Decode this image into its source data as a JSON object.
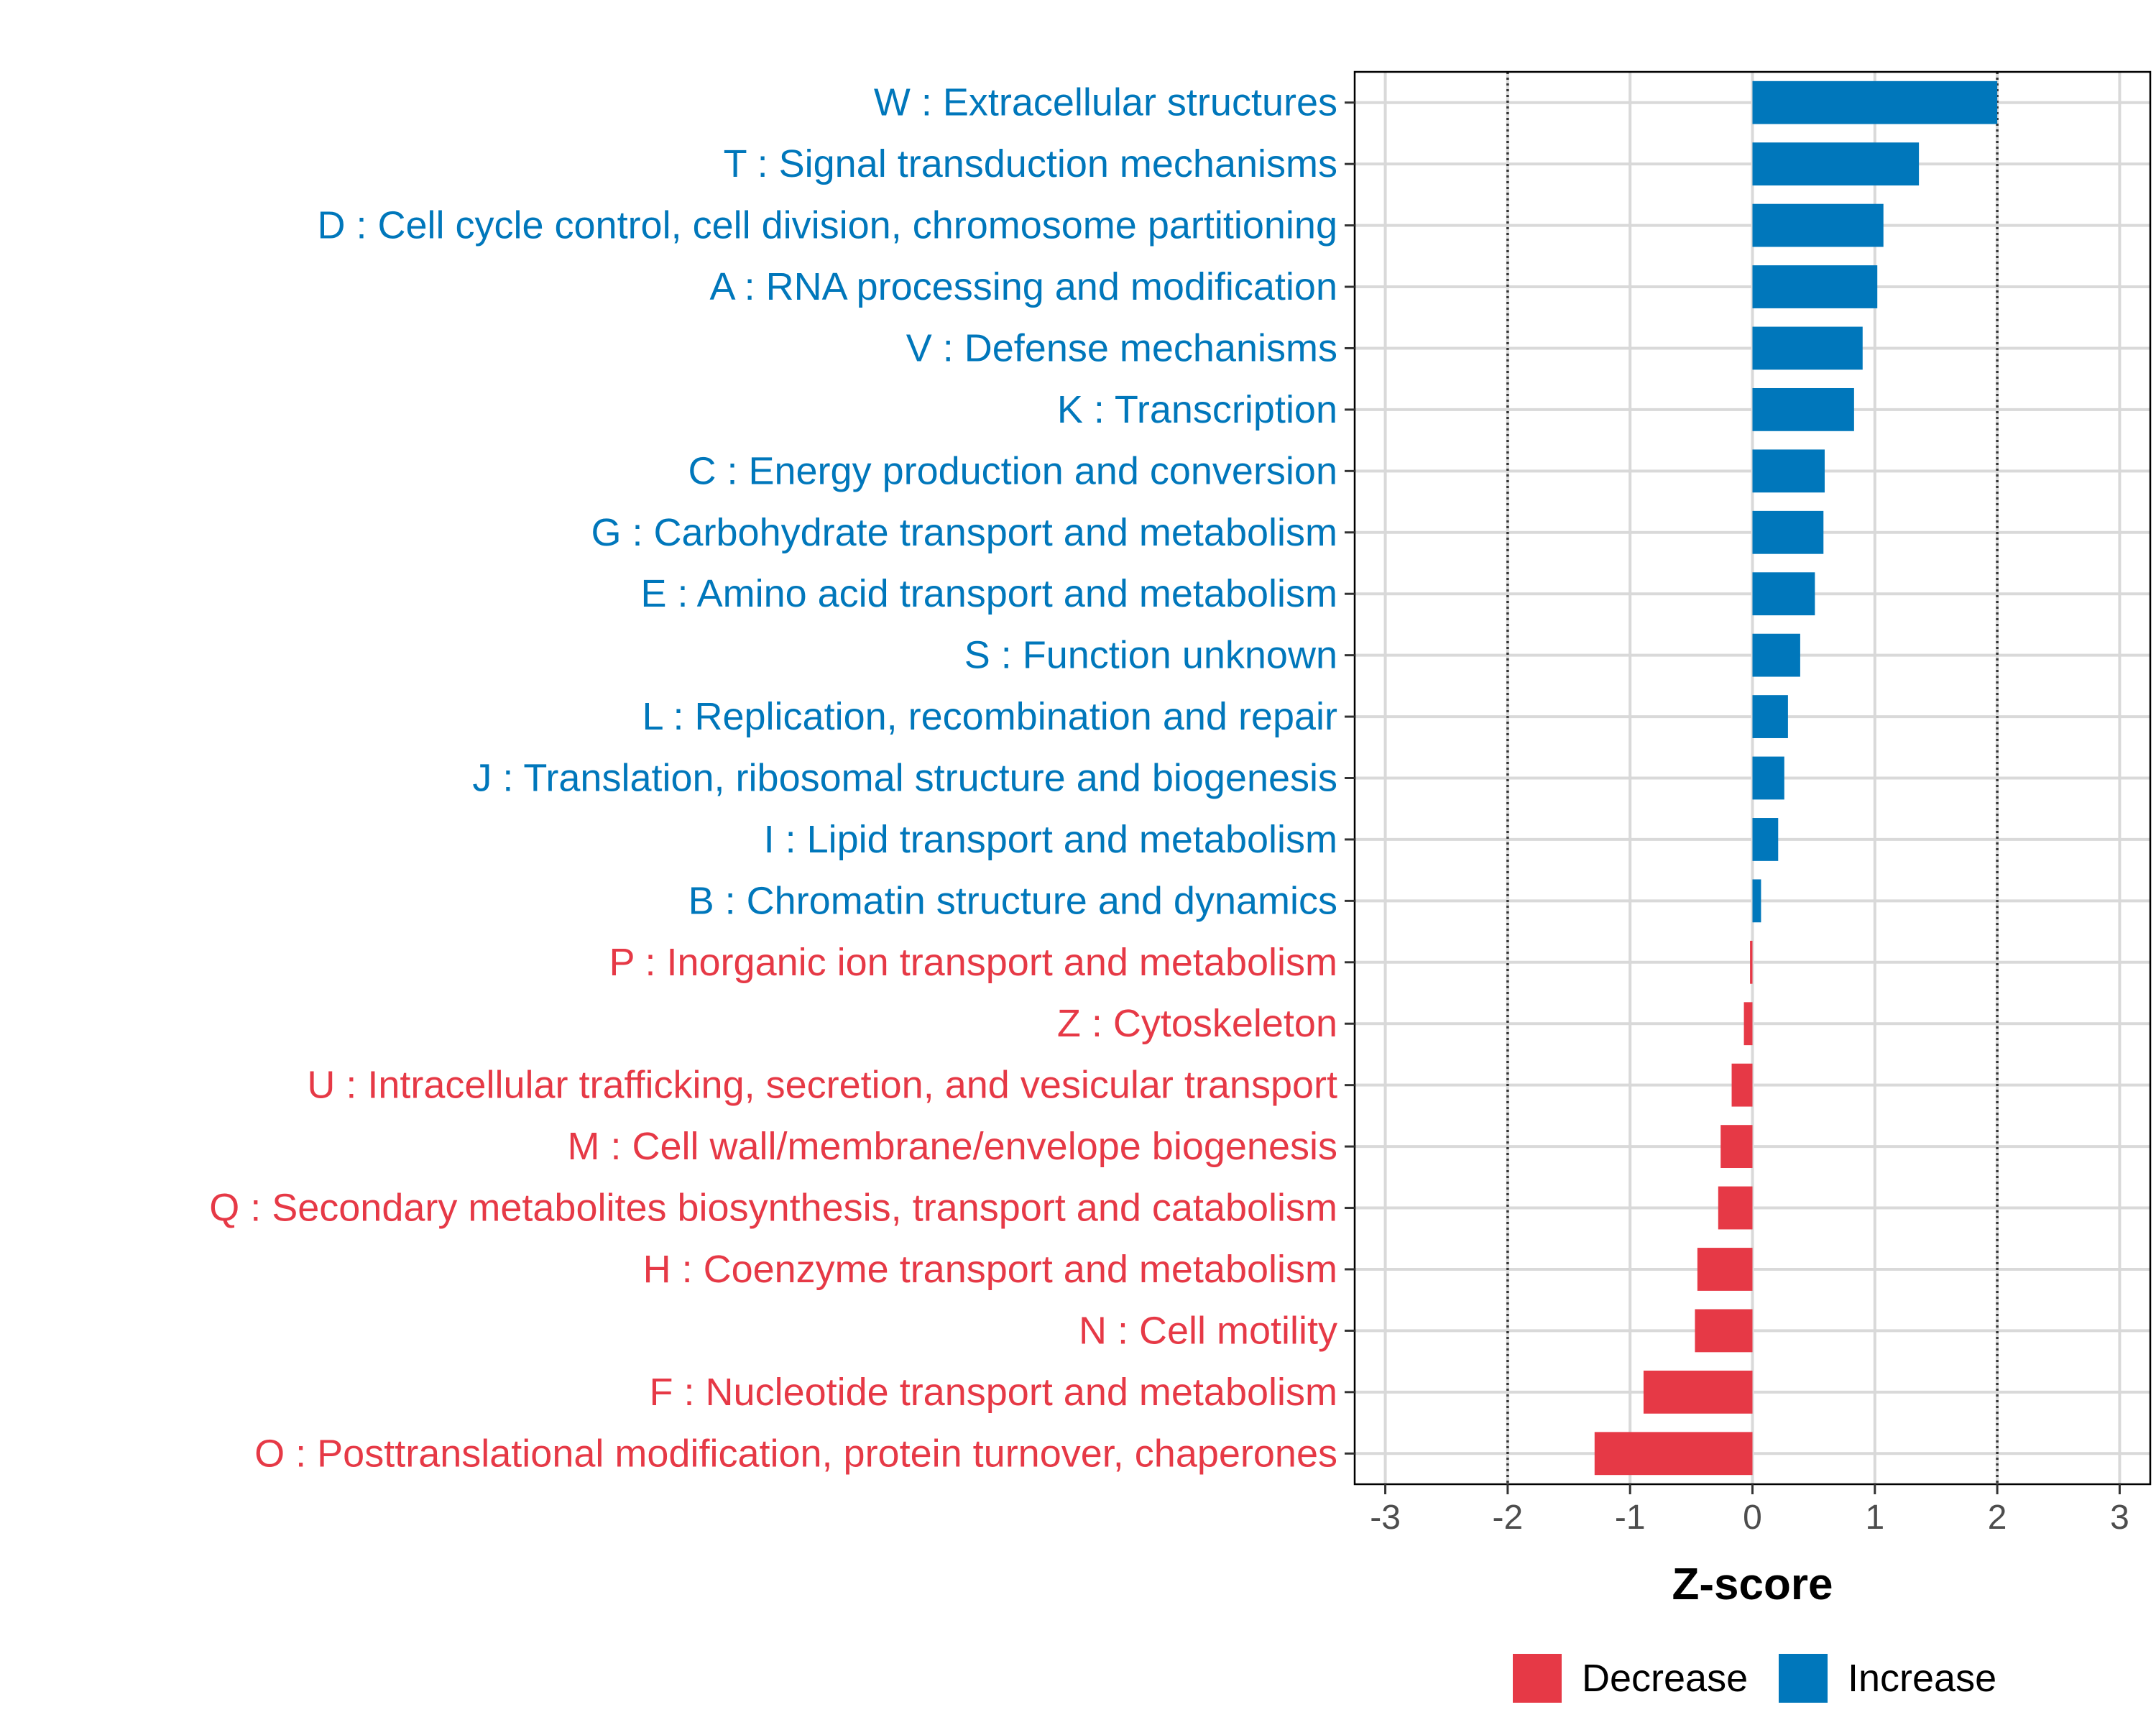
{
  "colors": {
    "increase": "#0077BB",
    "decrease": "#E63946",
    "grid": "#D9D9D9",
    "reference_line": "#333333"
  },
  "chart_data": {
    "type": "bar",
    "orientation": "horizontal",
    "xlabel": "Z-score",
    "ylabel": "",
    "xlim": [
      -3.25,
      3.25
    ],
    "xticks": [
      -3,
      -2,
      -1,
      0,
      1,
      2,
      3
    ],
    "xtick_labels": [
      "-3",
      "-2",
      "-1",
      "0",
      "1",
      "2",
      "3"
    ],
    "reference_lines": [
      -2,
      2
    ],
    "grid": true,
    "legend": {
      "position": "bottom",
      "entries": [
        {
          "name": "Decrease",
          "color": "#E63946"
        },
        {
          "name": "Increase",
          "color": "#0077BB"
        }
      ]
    },
    "categories": [
      "W : Extracellular structures",
      "T : Signal transduction mechanisms",
      "D : Cell cycle control, cell division, chromosome partitioning",
      "A : RNA processing and modification",
      "V : Defense mechanisms",
      "K : Transcription",
      "C : Energy production and conversion",
      "G : Carbohydrate transport and metabolism",
      "E : Amino acid transport and metabolism",
      "S : Function unknown",
      "L : Replication, recombination and repair",
      "J : Translation, ribosomal structure and biogenesis",
      "I : Lipid transport and metabolism",
      "B : Chromatin structure and dynamics",
      "P : Inorganic ion transport and metabolism",
      "Z : Cytoskeleton",
      "U : Intracellular trafficking, secretion, and vesicular transport",
      "M : Cell wall/membrane/envelope biogenesis",
      "Q : Secondary metabolites biosynthesis, transport and catabolism",
      "H : Coenzyme transport and metabolism",
      "N : Cell motility",
      "F : Nucleotide transport and metabolism",
      "O : Posttranslational modification, protein turnover, chaperones"
    ],
    "values": [
      2.0,
      1.36,
      1.07,
      1.02,
      0.9,
      0.83,
      0.59,
      0.58,
      0.51,
      0.39,
      0.29,
      0.26,
      0.21,
      0.07,
      -0.02,
      -0.07,
      -0.17,
      -0.26,
      -0.28,
      -0.45,
      -0.47,
      -0.89,
      -1.29
    ],
    "groups": [
      "Increase",
      "Increase",
      "Increase",
      "Increase",
      "Increase",
      "Increase",
      "Increase",
      "Increase",
      "Increase",
      "Increase",
      "Increase",
      "Increase",
      "Increase",
      "Increase",
      "Decrease",
      "Decrease",
      "Decrease",
      "Decrease",
      "Decrease",
      "Decrease",
      "Decrease",
      "Decrease",
      "Decrease"
    ]
  }
}
